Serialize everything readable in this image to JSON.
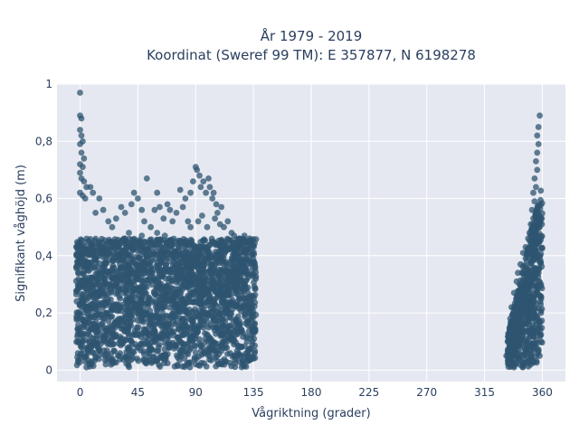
{
  "chart_data": {
    "type": "scatter",
    "title_line1": "År 1979 - 2019",
    "title_line2": "Koordinat (Sweref 99 TM): E 357877, N 6198278",
    "xlabel": "Vågriktning (grader)",
    "ylabel": "Signifikant våghöjd (m)",
    "xlim": [
      -18,
      378
    ],
    "ylim": [
      -0.04,
      1.0
    ],
    "xticks": [
      0,
      45,
      90,
      135,
      180,
      225,
      270,
      315,
      360
    ],
    "xtick_labels": [
      "0",
      "45",
      "90",
      "135",
      "180",
      "225",
      "270",
      "315",
      "360"
    ],
    "yticks": [
      0,
      0.2,
      0.4,
      0.6,
      0.8,
      1
    ],
    "ytick_labels": [
      "0",
      "0,2",
      "0,4",
      "0,6",
      "0,8",
      "1"
    ],
    "grid": true,
    "legend": "none",
    "marker_color": "#2e5470",
    "plot_bg": "#e5e8f0",
    "grid_color": "#ffffff",
    "dense_regions": [
      {
        "x": [
          -3,
          137
        ],
        "y": [
          0.01,
          0.46
        ]
      },
      {
        "x": [
          333,
          360
        ],
        "y": [
          0.01,
          0.45
        ]
      }
    ],
    "points": [
      [
        0,
        0.97
      ],
      [
        0,
        0.89
      ],
      [
        1,
        0.88
      ],
      [
        0,
        0.84
      ],
      [
        1,
        0.82
      ],
      [
        2,
        0.8
      ],
      [
        0,
        0.79
      ],
      [
        1,
        0.76
      ],
      [
        3,
        0.74
      ],
      [
        0,
        0.72
      ],
      [
        2,
        0.71
      ],
      [
        0,
        0.69
      ],
      [
        1,
        0.67
      ],
      [
        3,
        0.66
      ],
      [
        5,
        0.64
      ],
      [
        0,
        0.62
      ],
      [
        2,
        0.61
      ],
      [
        4,
        0.6
      ],
      [
        8,
        0.64
      ],
      [
        10,
        0.62
      ],
      [
        12,
        0.55
      ],
      [
        15,
        0.6
      ],
      [
        18,
        0.56
      ],
      [
        22,
        0.52
      ],
      [
        25,
        0.5
      ],
      [
        28,
        0.53
      ],
      [
        32,
        0.57
      ],
      [
        35,
        0.55
      ],
      [
        38,
        0.48
      ],
      [
        40,
        0.58
      ],
      [
        42,
        0.62
      ],
      [
        45,
        0.6
      ],
      [
        48,
        0.56
      ],
      [
        50,
        0.52
      ],
      [
        52,
        0.67
      ],
      [
        55,
        0.5
      ],
      [
        58,
        0.56
      ],
      [
        60,
        0.62
      ],
      [
        62,
        0.57
      ],
      [
        65,
        0.53
      ],
      [
        68,
        0.58
      ],
      [
        70,
        0.56
      ],
      [
        72,
        0.52
      ],
      [
        75,
        0.55
      ],
      [
        78,
        0.63
      ],
      [
        80,
        0.57
      ],
      [
        82,
        0.6
      ],
      [
        84,
        0.52
      ],
      [
        86,
        0.62
      ],
      [
        88,
        0.66
      ],
      [
        90,
        0.71
      ],
      [
        91,
        0.7
      ],
      [
        93,
        0.68
      ],
      [
        94,
        0.64
      ],
      [
        96,
        0.66
      ],
      [
        98,
        0.62
      ],
      [
        100,
        0.67
      ],
      [
        101,
        0.64
      ],
      [
        103,
        0.6
      ],
      [
        104,
        0.62
      ],
      [
        106,
        0.58
      ],
      [
        107,
        0.55
      ],
      [
        110,
        0.57
      ],
      [
        112,
        0.5
      ],
      [
        115,
        0.52
      ],
      [
        118,
        0.48
      ],
      [
        120,
        0.47
      ],
      [
        124,
        0.46
      ],
      [
        128,
        0.47
      ],
      [
        132,
        0.46
      ],
      [
        35,
        0.46
      ],
      [
        48,
        0.47
      ],
      [
        60,
        0.48
      ],
      [
        66,
        0.47
      ],
      [
        86,
        0.5
      ],
      [
        92,
        0.52
      ],
      [
        95,
        0.54
      ],
      [
        99,
        0.5
      ],
      [
        105,
        0.53
      ],
      [
        109,
        0.51
      ],
      [
        135,
        0.04
      ],
      [
        136,
        0.06
      ],
      [
        130,
        0.03
      ],
      [
        20,
        0.02
      ],
      [
        5,
        0.01
      ],
      [
        50,
        0.03
      ],
      [
        90,
        0.02
      ],
      [
        110,
        0.02
      ],
      [
        358,
        0.89
      ],
      [
        357,
        0.85
      ],
      [
        356,
        0.82
      ],
      [
        357,
        0.79
      ],
      [
        356,
        0.76
      ],
      [
        355,
        0.73
      ],
      [
        356,
        0.7
      ],
      [
        354,
        0.67
      ],
      [
        355,
        0.64
      ],
      [
        353,
        0.62
      ],
      [
        354,
        0.59
      ],
      [
        352,
        0.56
      ],
      [
        353,
        0.53
      ],
      [
        351,
        0.51
      ],
      [
        350,
        0.48
      ],
      [
        349,
        0.46
      ],
      [
        347,
        0.43
      ],
      [
        345,
        0.41
      ],
      [
        343,
        0.37
      ],
      [
        341,
        0.34
      ],
      [
        340,
        0.31
      ],
      [
        338,
        0.27
      ],
      [
        336,
        0.22
      ],
      [
        335,
        0.18
      ],
      [
        333,
        0.1
      ],
      [
        332,
        0.05
      ],
      [
        334,
        0.04
      ],
      [
        336,
        0.02
      ],
      [
        338,
        0.01
      ],
      [
        345,
        0.02
      ],
      [
        352,
        0.03
      ],
      [
        358,
        0.05
      ],
      [
        359,
        0.1
      ],
      [
        359,
        0.2
      ],
      [
        359,
        0.3
      ],
      [
        358,
        0.4
      ],
      [
        358,
        0.5
      ]
    ]
  }
}
